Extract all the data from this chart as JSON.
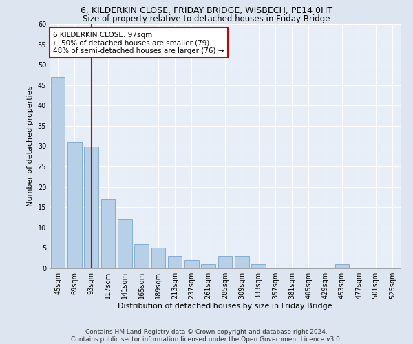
{
  "title1": "6, KILDERKIN CLOSE, FRIDAY BRIDGE, WISBECH, PE14 0HT",
  "title2": "Size of property relative to detached houses in Friday Bridge",
  "xlabel": "Distribution of detached houses by size in Friday Bridge",
  "ylabel": "Number of detached properties",
  "categories": [
    "45sqm",
    "69sqm",
    "93sqm",
    "117sqm",
    "141sqm",
    "165sqm",
    "189sqm",
    "213sqm",
    "237sqm",
    "261sqm",
    "285sqm",
    "309sqm",
    "333sqm",
    "357sqm",
    "381sqm",
    "405sqm",
    "429sqm",
    "453sqm",
    "477sqm",
    "501sqm",
    "525sqm"
  ],
  "values": [
    47,
    31,
    30,
    17,
    12,
    6,
    5,
    3,
    2,
    1,
    3,
    3,
    1,
    0,
    0,
    0,
    0,
    1,
    0,
    0,
    0
  ],
  "bar_color": "#b8cfe8",
  "bar_edge_color": "#6699cc",
  "vline_x": 2,
  "annotation_text": "6 KILDERKIN CLOSE: 97sqm\n← 50% of detached houses are smaller (79)\n48% of semi-detached houses are larger (76) →",
  "annotation_box_color": "#ffffff",
  "annotation_box_edge_color": "#cc0000",
  "ylim": [
    0,
    60
  ],
  "yticks": [
    0,
    5,
    10,
    15,
    20,
    25,
    30,
    35,
    40,
    45,
    50,
    55,
    60
  ],
  "footer1": "Contains HM Land Registry data © Crown copyright and database right 2024.",
  "footer2": "Contains public sector information licensed under the Open Government Licence v3.0.",
  "background_color": "#dde5f0",
  "plot_bg_color": "#e8eef7",
  "grid_color": "#ffffff",
  "title1_fontsize": 9,
  "title2_fontsize": 8.5,
  "axis_label_fontsize": 8,
  "tick_fontsize": 7,
  "annotation_fontsize": 7.5,
  "footer_fontsize": 6.5
}
